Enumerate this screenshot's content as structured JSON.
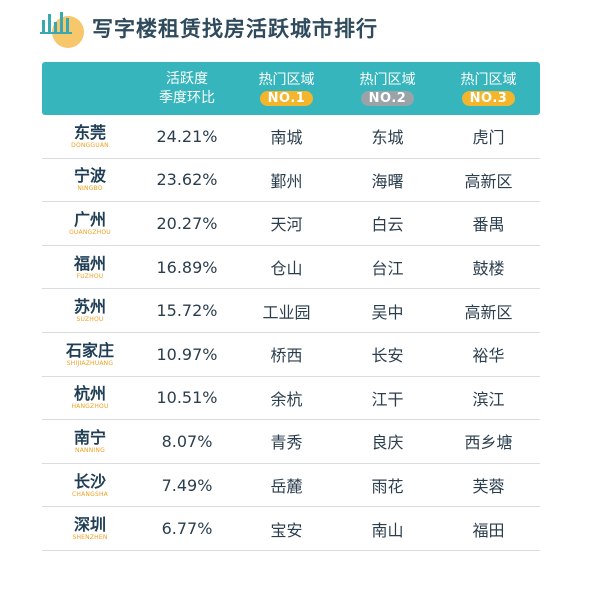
{
  "header": {
    "title": "写字楼租赁找房活跃城市排行",
    "logo_color": "#f7c76c"
  },
  "table": {
    "columns": {
      "rate_line1": "活跃度",
      "rate_line2": "季度环比",
      "zone1_label": "热门区域",
      "zone1_badge": "NO.1",
      "zone2_label": "热门区域",
      "zone2_badge": "NO.2",
      "zone3_label": "热门区域",
      "zone3_badge": "NO.3"
    },
    "colors": {
      "header_bg": "#36b6bc",
      "badge_no1": "#f2b52c",
      "badge_no2": "#9aa3a8",
      "badge_no3": "#f2b52c",
      "city_en": "#f0a020"
    },
    "rows": [
      {
        "city": "东莞",
        "city_en": "DONGGUAN",
        "rate": "24.21%",
        "z1": "南城",
        "z2": "东城",
        "z3": "虎门"
      },
      {
        "city": "宁波",
        "city_en": "NINGBO",
        "rate": "23.62%",
        "z1": "鄞州",
        "z2": "海曙",
        "z3": "高新区"
      },
      {
        "city": "广州",
        "city_en": "GUANGZHOU",
        "rate": "20.27%",
        "z1": "天河",
        "z2": "白云",
        "z3": "番禺"
      },
      {
        "city": "福州",
        "city_en": "FUZHOU",
        "rate": "16.89%",
        "z1": "仓山",
        "z2": "台江",
        "z3": "鼓楼"
      },
      {
        "city": "苏州",
        "city_en": "SUZHOU",
        "rate": "15.72%",
        "z1": "工业园",
        "z2": "吴中",
        "z3": "高新区"
      },
      {
        "city": "石家庄",
        "city_en": "SHIJIAZHUANG",
        "rate": "10.97%",
        "z1": "桥西",
        "z2": "长安",
        "z3": "裕华"
      },
      {
        "city": "杭州",
        "city_en": "HANGZHOU",
        "rate": "10.51%",
        "z1": "余杭",
        "z2": "江干",
        "z3": "滨江"
      },
      {
        "city": "南宁",
        "city_en": "NANNING",
        "rate": "8.07%",
        "z1": "青秀",
        "z2": "良庆",
        "z3": "西乡塘"
      },
      {
        "city": "长沙",
        "city_en": "CHANGSHA",
        "rate": "7.49%",
        "z1": "岳麓",
        "z2": "雨花",
        "z3": "芙蓉"
      },
      {
        "city": "深圳",
        "city_en": "SHENZHEN",
        "rate": "6.77%",
        "z1": "宝安",
        "z2": "南山",
        "z3": "福田"
      }
    ]
  }
}
